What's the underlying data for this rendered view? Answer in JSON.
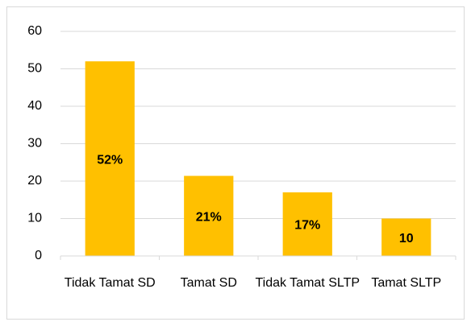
{
  "chart_data": {
    "type": "bar",
    "categories": [
      "Tidak Tamat SD",
      "Tamat SD",
      "Tidak Tamat SLTP",
      "Tamat SLTP"
    ],
    "values": [
      52,
      21.4,
      17,
      10
    ],
    "value_labels": [
      "52%",
      "21%",
      "17%",
      "10"
    ],
    "color": "#ffc000",
    "ylim": [
      0,
      60
    ],
    "yticks": [
      0,
      10,
      20,
      30,
      40,
      50,
      60
    ],
    "grid": true
  }
}
